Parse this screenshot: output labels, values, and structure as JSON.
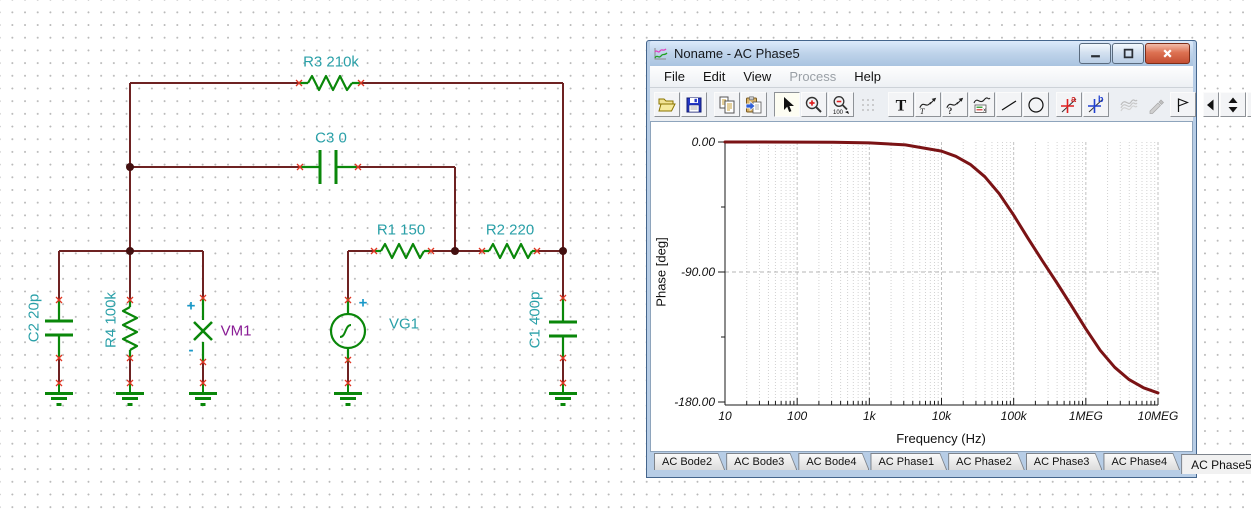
{
  "window": {
    "title": "Noname - AC Phase5",
    "title_icon": "tina-diagram-icon",
    "controls": [
      {
        "name": "minimize"
      },
      {
        "name": "maximize"
      },
      {
        "name": "close"
      }
    ],
    "menu": [
      {
        "label": "File",
        "enabled": true
      },
      {
        "label": "Edit",
        "enabled": true
      },
      {
        "label": "View",
        "enabled": true
      },
      {
        "label": "Process",
        "enabled": false
      },
      {
        "label": "Help",
        "enabled": true
      }
    ],
    "toolbar": {
      "groups": [
        [
          {
            "icon": "open-file"
          },
          {
            "icon": "save"
          }
        ],
        [
          {
            "icon": "copy"
          },
          {
            "icon": "paste"
          }
        ],
        [
          {
            "icon": "select-cursor",
            "state": "pressed"
          },
          {
            "icon": "zoom-in"
          },
          {
            "icon": "zoom-out-100"
          },
          {
            "icon": "grid",
            "state": "disabled"
          }
        ],
        [
          {
            "icon": "text"
          },
          {
            "icon": "curve-pointer-t"
          },
          {
            "icon": "curve-pointer-q"
          },
          {
            "icon": "curve-legend"
          },
          {
            "icon": "line-tool"
          },
          {
            "icon": "ellipse-tool"
          }
        ],
        [
          {
            "icon": "cursor-a"
          },
          {
            "icon": "cursor-b"
          }
        ],
        [
          {
            "icon": "smoothing",
            "state": "disabled"
          },
          {
            "icon": "color-pen",
            "state": "disabled"
          },
          {
            "icon": "flag"
          }
        ]
      ],
      "nav": [
        {
          "icon": "nav-left"
        },
        {
          "icon": "nav-spinner"
        },
        {
          "icon": "nav-right"
        }
      ]
    },
    "tabs": {
      "items": [
        "AC Bode2",
        "AC Bode3",
        "AC Bode4",
        "AC Phase1",
        "AC Phase2",
        "AC Phase3",
        "AC Phase4",
        "AC Phase5"
      ],
      "active": "AC Phase5",
      "scroll_left": "◀",
      "scroll_right": "▶"
    }
  },
  "chart_data": {
    "type": "line",
    "title": "",
    "xlabel": "Frequency (Hz)",
    "ylabel": "Phase [deg]",
    "x_scale": "log",
    "x_range": [
      10,
      10000000
    ],
    "x_ticks": [
      "10",
      "100",
      "1k",
      "10k",
      "100k",
      "1MEG",
      "10MEG"
    ],
    "y_range": [
      -180,
      0
    ],
    "y_ticks": [
      "0.00",
      "-90.00",
      "-180.00"
    ],
    "y_tick_values": [
      0,
      -90,
      -180
    ],
    "y_minor_values": [
      -45,
      -135
    ],
    "grid": true,
    "legend_position": "none",
    "series": [
      {
        "name": "Phase",
        "color": "#7b1315",
        "points": [
          [
            10,
            -0.01
          ],
          [
            100,
            -0.06
          ],
          [
            316,
            -0.2
          ],
          [
            1000,
            -0.63
          ],
          [
            3160,
            -2.0
          ],
          [
            10000,
            -6.3
          ],
          [
            15800,
            -9.9
          ],
          [
            25100,
            -15.5
          ],
          [
            39800,
            -24.0
          ],
          [
            63100,
            -35.8
          ],
          [
            100000,
            -50.7
          ],
          [
            158000,
            -66.7
          ],
          [
            251000,
            -82.4
          ],
          [
            398000,
            -97.6
          ],
          [
            631000,
            -113.3
          ],
          [
            1000000,
            -129.3
          ],
          [
            1580000,
            -144.2
          ],
          [
            2510000,
            -156.0
          ],
          [
            3980000,
            -164.5
          ],
          [
            6310000,
            -170.2
          ],
          [
            10000000,
            -173.7
          ]
        ]
      }
    ]
  },
  "circuit": {
    "labels": {
      "r3": "R3 210k",
      "c3": "C3 0",
      "r1": "R1 150",
      "r2": "R2 220",
      "c2": "C2 20p",
      "r4": "R4 100k",
      "vm1": "VM1",
      "vg1": "VG1",
      "c1": "C1 400p",
      "vm1_plus": "+",
      "vm1_minus": "-",
      "vg1_plus": "+"
    },
    "colors": {
      "wire": "#6e2222",
      "component": "#0a870a",
      "label": "#2aa0a8",
      "meter_label": "#8a1d96",
      "terminal_x": "#e03522",
      "curve": "#7b1315"
    }
  }
}
